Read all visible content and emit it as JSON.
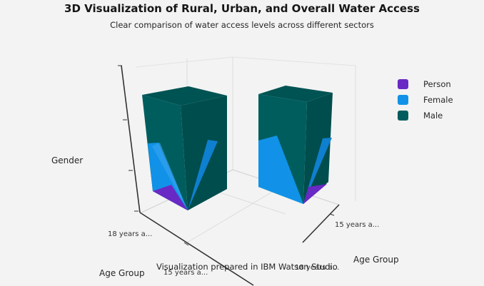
{
  "chart_data": {
    "type": "bar3d",
    "title": "3D Visualization of Rural, Urban, and Overall Water Access",
    "subtitle": "Clear comparison of water access levels across different sectors",
    "z_axis_label": "Gender",
    "x_axis_label": "Age Group",
    "y_axis_label": "Age Group",
    "x_tick_labels": [
      "18 years a...",
      "15 years a..."
    ],
    "y_tick_labels": [
      "15 years a...",
      "18 years a..."
    ],
    "series": [
      {
        "name": "Person",
        "color": "#6929c4"
      },
      {
        "name": "Female",
        "color": "#1192e8"
      },
      {
        "name": "Male",
        "color": "#005d5d"
      }
    ],
    "legend_position": "right",
    "grid": true,
    "annotation": "Visualization prepared in IBM Watson Studio"
  }
}
